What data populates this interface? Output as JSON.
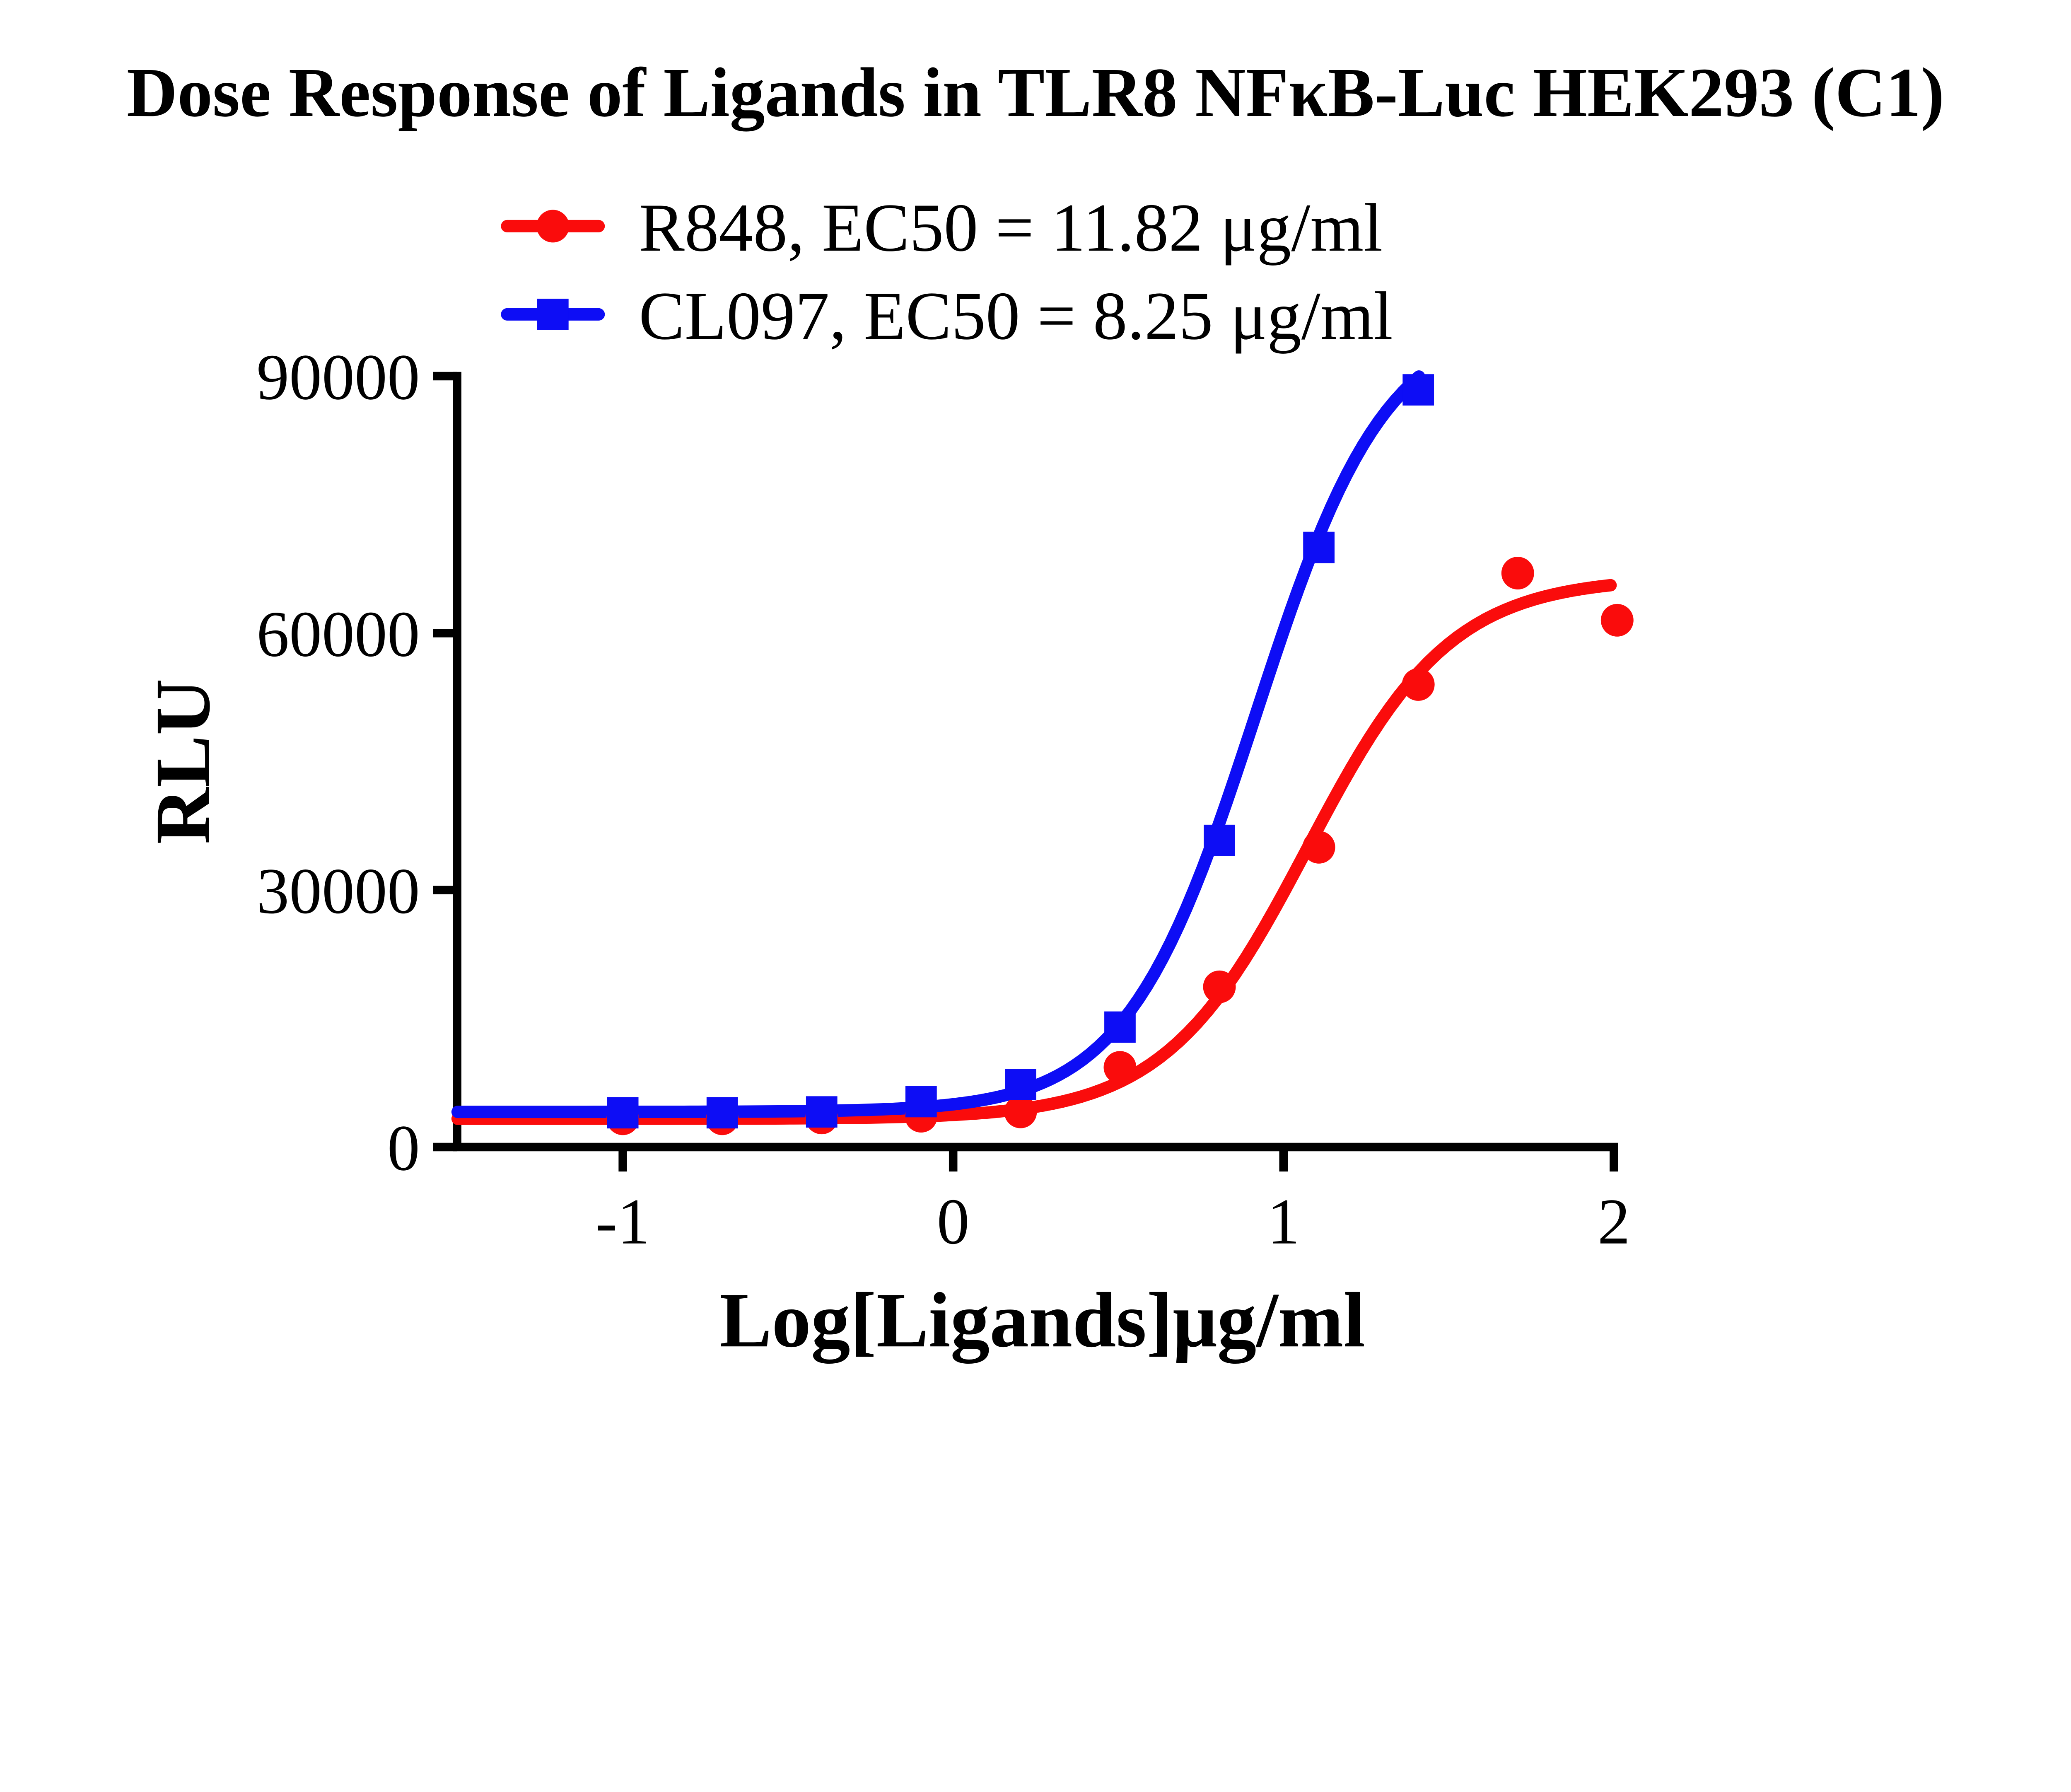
{
  "title": "Dose Response of Ligands in TLR8 NFκB-Luc HEK293 (C1)",
  "chart_data": {
    "type": "scatter",
    "subtype": "dose-response-sigmoid-fit",
    "title": "Dose Response of Ligands in TLR8 NFκB-Luc HEK293 (C1)",
    "xlabel": "Log[Ligands]μg/ml",
    "ylabel": "RLU",
    "xlim": [
      -1.5,
      2.01
    ],
    "ylim": [
      0,
      90000
    ],
    "grid": false,
    "legend_position": "top-center",
    "x_ticks": [
      -1,
      0,
      1,
      2
    ],
    "x_tick_labels": [
      "-1",
      "0",
      "1",
      "2"
    ],
    "y_ticks": [
      0,
      30000,
      60000,
      90000
    ],
    "y_tick_labels": [
      "0",
      "30000",
      "60000",
      "90000"
    ],
    "series": [
      {
        "name": "R848",
        "legend_label": "R848, EC50 = 11.82 μg/ml",
        "ec50_text": "11.82 μg/ml",
        "color": "#fa0c0c",
        "marker": "circle",
        "points": [
          {
            "x": -1.0,
            "y": 3300
          },
          {
            "x": -0.699,
            "y": 3300
          },
          {
            "x": -0.398,
            "y": 3400
          },
          {
            "x": -0.097,
            "y": 3600
          },
          {
            "x": 0.204,
            "y": 4100
          },
          {
            "x": 0.505,
            "y": 9300
          },
          {
            "x": 0.806,
            "y": 18700
          },
          {
            "x": 1.107,
            "y": 35000
          },
          {
            "x": 1.408,
            "y": 54000
          },
          {
            "x": 1.709,
            "y": 67000
          },
          {
            "x": 2.01,
            "y": 61500
          }
        ],
        "fit": {
          "bottom": 3300,
          "top": 66500,
          "logEC50": 1.0726,
          "hill": 2.0,
          "x_start": -1.5,
          "x_end": 1.99
        }
      },
      {
        "name": "CL097",
        "legend_label": "CL097, EC50 = 8.25 μg/ml",
        "ec50_text": "8.25 μg/ml",
        "color": "#0d0df5",
        "marker": "square",
        "points": [
          {
            "x": -1.0,
            "y": 4000
          },
          {
            "x": -0.699,
            "y": 4000
          },
          {
            "x": -0.398,
            "y": 4100
          },
          {
            "x": -0.097,
            "y": 5300
          },
          {
            "x": 0.204,
            "y": 7300
          },
          {
            "x": 0.505,
            "y": 14000
          },
          {
            "x": 0.806,
            "y": 35800
          },
          {
            "x": 1.107,
            "y": 70000
          },
          {
            "x": 1.408,
            "y": 88400
          }
        ],
        "fit": {
          "bottom": 4100,
          "top": 97000,
          "logEC50": 0.9165,
          "hill": 2.2,
          "x_start": -1.5,
          "x_end": 1.41
        }
      }
    ]
  }
}
